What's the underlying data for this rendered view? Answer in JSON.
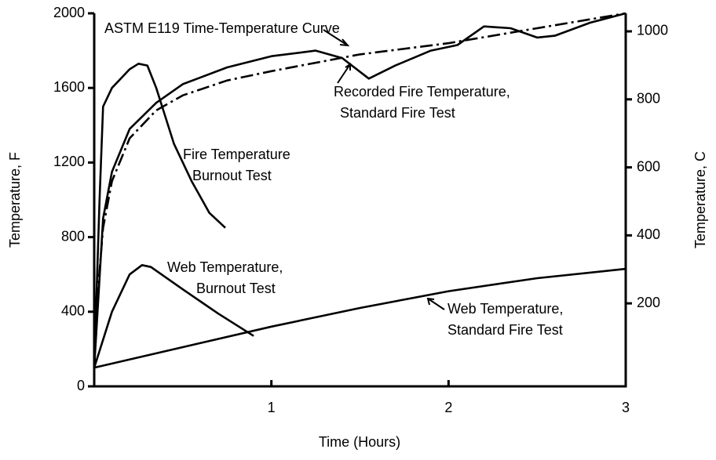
{
  "chart_data": {
    "type": "line",
    "x_label": "Time (Hours)",
    "y_label": "Temperature, F",
    "y2_label": "Temperature, C",
    "xlim": [
      0,
      3
    ],
    "xticks": [
      1,
      2,
      3
    ],
    "ylim": [
      0,
      2000
    ],
    "yticks": [
      0,
      400,
      800,
      1200,
      1600,
      2000
    ],
    "y2lim": [
      -44,
      1053
    ],
    "y2ticks": [
      200,
      400,
      600,
      800,
      1000
    ],
    "series": [
      {
        "label_lines": [
          "ASTM E119 Time-Temperature Curve"
        ],
        "color": "#000000",
        "style": "dashdot",
        "x": [
          0,
          0.02,
          0.05,
          0.1,
          0.2,
          0.35,
          0.5,
          0.75,
          1,
          1.5,
          2,
          2.5,
          3
        ],
        "values": [
          100,
          500,
          850,
          1100,
          1330,
          1480,
          1560,
          1640,
          1690,
          1780,
          1840,
          1920,
          2000
        ]
      },
      {
        "label_lines": [
          "Recorded Fire Temperature,",
          "Standard Fire Test"
        ],
        "color": "#000000",
        "style": "solid",
        "x": [
          0,
          0.05,
          0.1,
          0.2,
          0.35,
          0.5,
          0.75,
          1,
          1.25,
          1.4,
          1.55,
          1.7,
          1.9,
          2.05,
          2.2,
          2.35,
          2.5,
          2.6,
          2.8,
          3
        ],
        "values": [
          100,
          900,
          1150,
          1380,
          1520,
          1620,
          1710,
          1770,
          1800,
          1760,
          1650,
          1720,
          1800,
          1830,
          1930,
          1920,
          1870,
          1880,
          1950,
          2000
        ]
      },
      {
        "label_lines": [
          "Fire Temperature",
          "Burnout Test"
        ],
        "color": "#000000",
        "style": "solid",
        "x": [
          0,
          0.03,
          0.05,
          0.1,
          0.2,
          0.25,
          0.3,
          0.35,
          0.45,
          0.55,
          0.65,
          0.74
        ],
        "values": [
          100,
          1000,
          1500,
          1600,
          1700,
          1730,
          1720,
          1600,
          1300,
          1100,
          930,
          850
        ]
      },
      {
        "label_lines": [
          "Web Temperature,",
          "Burnout Test"
        ],
        "color": "#000000",
        "style": "solid",
        "x": [
          0,
          0.1,
          0.2,
          0.27,
          0.32,
          0.5,
          0.7,
          0.9
        ],
        "values": [
          100,
          400,
          600,
          650,
          640,
          520,
          390,
          270
        ]
      },
      {
        "label_lines": [
          "Web Temperature,",
          "Standard Fire Test"
        ],
        "color": "#000000",
        "style": "solid",
        "x": [
          0,
          0.5,
          1,
          1.5,
          2,
          2.5,
          3
        ],
        "values": [
          100,
          210,
          320,
          420,
          510,
          580,
          630
        ]
      }
    ]
  }
}
